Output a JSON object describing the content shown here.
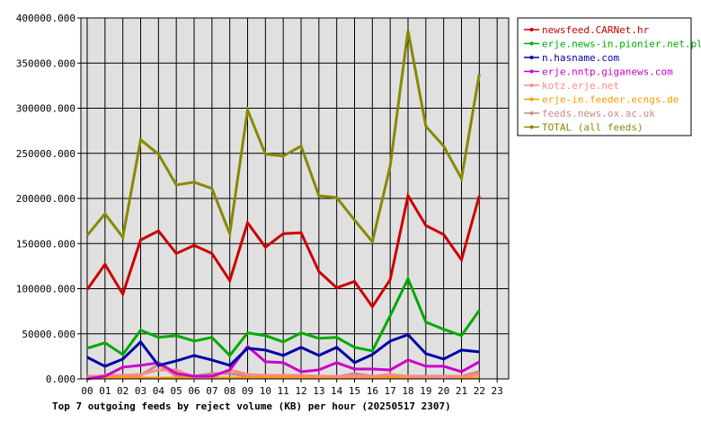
{
  "chart_data": {
    "type": "line",
    "caption": "Top 7 outgoing feeds by reject volume (KB) per hour (20250517 2307)",
    "x": [
      "00",
      "01",
      "02",
      "03",
      "04",
      "05",
      "06",
      "07",
      "08",
      "09",
      "10",
      "11",
      "12",
      "13",
      "14",
      "15",
      "16",
      "17",
      "18",
      "19",
      "20",
      "21",
      "22",
      "23"
    ],
    "ylim": [
      0,
      400000
    ],
    "yticks": [
      "0.000",
      "50000.000",
      "100000.000",
      "150000.000",
      "200000.000",
      "250000.000",
      "300000.000",
      "350000.000",
      "400000.000"
    ],
    "grid": true,
    "background": "#e0e0e0",
    "legend_position": "top-right",
    "series": [
      {
        "name": "newsfeed.CARNet.hr",
        "color": "#cc0000",
        "values": [
          99000,
          127000,
          94000,
          154000,
          164000,
          139000,
          148000,
          139000,
          109000,
          173000,
          146000,
          161000,
          162000,
          119000,
          101000,
          108000,
          80000,
          110000,
          203000,
          170000,
          160000,
          132000,
          203000,
          null
        ]
      },
      {
        "name": "erje.news-in.pionier.net.pl",
        "color": "#00aa00",
        "values": [
          34000,
          40000,
          27000,
          54000,
          46000,
          48000,
          42000,
          46000,
          26000,
          51000,
          48000,
          41000,
          51000,
          45000,
          46000,
          35000,
          31000,
          70000,
          111000,
          63000,
          55000,
          48000,
          76000,
          null
        ]
      },
      {
        "name": "n.hasname.com",
        "color": "#0000aa",
        "values": [
          24000,
          14000,
          22000,
          41000,
          15000,
          20000,
          26000,
          21000,
          15000,
          34000,
          32000,
          26000,
          35000,
          26000,
          35000,
          18000,
          27000,
          42000,
          49000,
          28000,
          22000,
          32000,
          30000,
          null
        ]
      },
      {
        "name": "erje.nntp.giganews.com",
        "color": "#cc00cc",
        "values": [
          0,
          3000,
          13000,
          15000,
          18000,
          6000,
          3000,
          3000,
          10000,
          36000,
          19000,
          18000,
          8000,
          10000,
          18000,
          11000,
          11000,
          10000,
          21000,
          14000,
          14000,
          8000,
          19000,
          null
        ]
      },
      {
        "name": "kotz.erje.net",
        "color": "#ff8888",
        "values": [
          2000,
          4000,
          4000,
          5000,
          10000,
          10000,
          2000,
          2000,
          10000,
          5000,
          4000,
          4000,
          4000,
          3000,
          3000,
          3000,
          3000,
          5000,
          3000,
          2000,
          2000,
          3000,
          5000,
          null
        ]
      },
      {
        "name": "erje-in.feeder.ecngs.de",
        "color": "#ff9900",
        "values": [
          1000,
          1000,
          1000,
          1000,
          1000,
          1000,
          1000,
          1000,
          1000,
          1000,
          1000,
          1000,
          1000,
          1000,
          1000,
          1000,
          1000,
          1000,
          1000,
          1000,
          1000,
          1000,
          1000,
          null
        ]
      },
      {
        "name": "feeds.news.ox.ac.uk",
        "color": "#cc8888",
        "values": [
          3000,
          3000,
          3000,
          4000,
          16000,
          3000,
          3000,
          6000,
          6000,
          3000,
          2000,
          2000,
          2000,
          2000,
          2000,
          6000,
          3000,
          3000,
          3000,
          3000,
          3000,
          3000,
          8000,
          null
        ]
      },
      {
        "name": "TOTAL (all feeds)",
        "color": "#888800",
        "values": [
          159000,
          183000,
          157000,
          265000,
          249000,
          215000,
          218000,
          211000,
          161000,
          298000,
          249000,
          247000,
          258000,
          203000,
          201000,
          176000,
          152000,
          236000,
          386000,
          280000,
          258000,
          222000,
          338000,
          null
        ]
      }
    ]
  }
}
